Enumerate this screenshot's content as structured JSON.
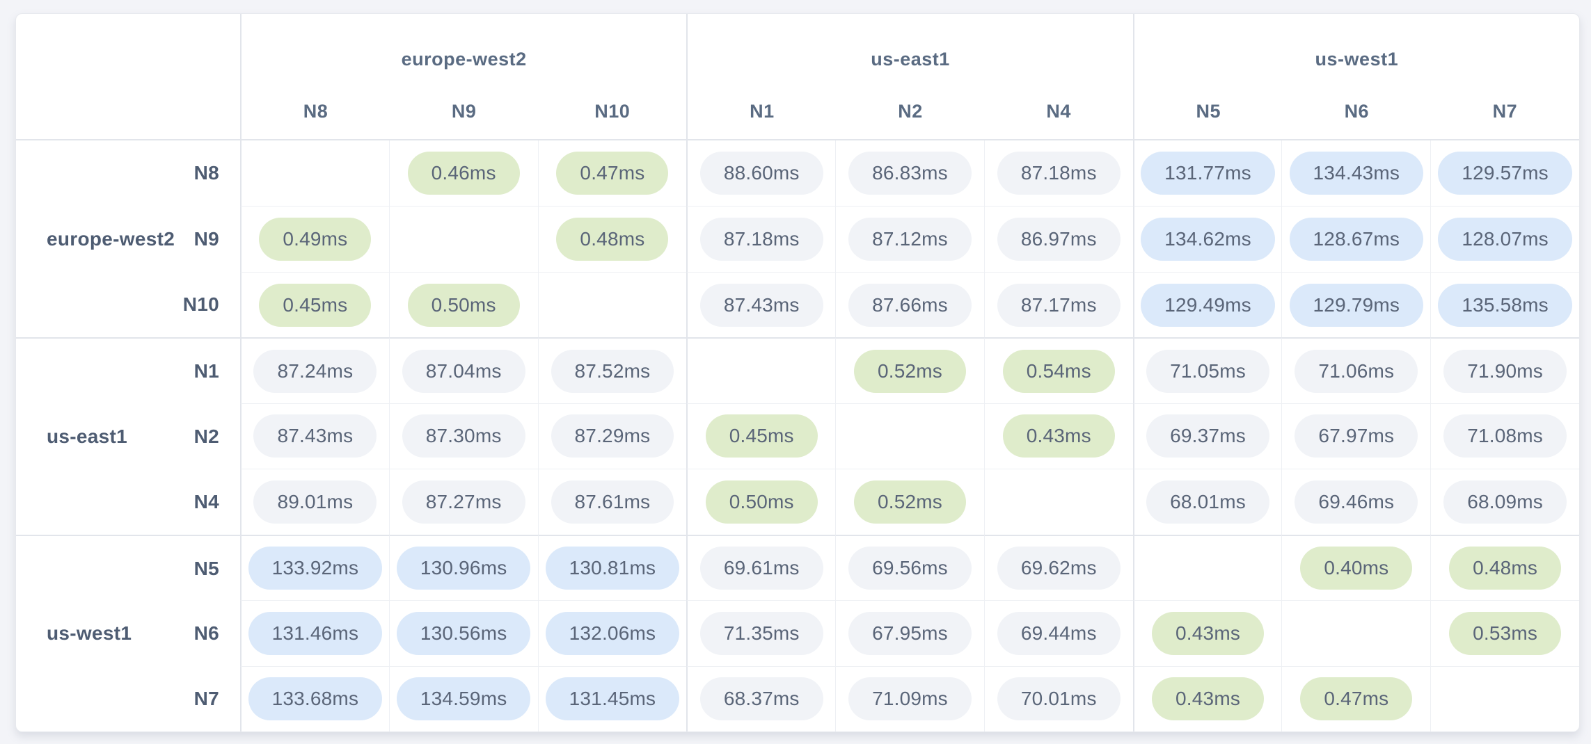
{
  "matrix": {
    "regions": [
      {
        "name": "europe-west2",
        "nodes": [
          "N8",
          "N9",
          "N10"
        ]
      },
      {
        "name": "us-east1",
        "nodes": [
          "N1",
          "N2",
          "N4"
        ]
      },
      {
        "name": "us-west1",
        "nodes": [
          "N5",
          "N6",
          "N7"
        ]
      }
    ],
    "rows": [
      {
        "region": "europe-west2",
        "node": "N8",
        "values": [
          "",
          "0.46ms",
          "0.47ms",
          "88.60ms",
          "86.83ms",
          "87.18ms",
          "131.77ms",
          "134.43ms",
          "129.57ms"
        ]
      },
      {
        "region": "europe-west2",
        "node": "N9",
        "values": [
          "0.49ms",
          "",
          "0.48ms",
          "87.18ms",
          "87.12ms",
          "86.97ms",
          "134.62ms",
          "128.67ms",
          "128.07ms"
        ]
      },
      {
        "region": "europe-west2",
        "node": "N10",
        "values": [
          "0.45ms",
          "0.50ms",
          "",
          "87.43ms",
          "87.66ms",
          "87.17ms",
          "129.49ms",
          "129.79ms",
          "135.58ms"
        ]
      },
      {
        "region": "us-east1",
        "node": "N1",
        "values": [
          "87.24ms",
          "87.04ms",
          "87.52ms",
          "",
          "0.52ms",
          "0.54ms",
          "71.05ms",
          "71.06ms",
          "71.90ms"
        ]
      },
      {
        "region": "us-east1",
        "node": "N2",
        "values": [
          "87.43ms",
          "87.30ms",
          "87.29ms",
          "0.45ms",
          "",
          "0.43ms",
          "69.37ms",
          "67.97ms",
          "71.08ms"
        ]
      },
      {
        "region": "us-east1",
        "node": "N4",
        "values": [
          "89.01ms",
          "87.27ms",
          "87.61ms",
          "0.50ms",
          "0.52ms",
          "",
          "68.01ms",
          "69.46ms",
          "68.09ms"
        ]
      },
      {
        "region": "us-west1",
        "node": "N5",
        "values": [
          "133.92ms",
          "130.96ms",
          "130.81ms",
          "69.61ms",
          "69.56ms",
          "69.62ms",
          "",
          "0.40ms",
          "0.48ms"
        ]
      },
      {
        "region": "us-west1",
        "node": "N6",
        "values": [
          "131.46ms",
          "130.56ms",
          "132.06ms",
          "71.35ms",
          "67.95ms",
          "69.44ms",
          "0.43ms",
          "",
          "0.53ms"
        ]
      },
      {
        "region": "us-west1",
        "node": "N7",
        "values": [
          "133.68ms",
          "134.59ms",
          "131.45ms",
          "68.37ms",
          "71.09ms",
          "70.01ms",
          "0.43ms",
          "0.47ms",
          ""
        ]
      }
    ]
  },
  "colors": {
    "pill_low_latency_green": "#dfeccb",
    "pill_mid_latency_gray": "#f1f3f7",
    "pill_high_latency_blue": "#dbe9fa",
    "value_text": "#5a6578",
    "column_header_text": "#5a6b82",
    "row_label_text": "#4e5c72"
  },
  "chart_data": {
    "type": "heatmap",
    "unit": "ms",
    "column_groups": [
      "europe-west2",
      "europe-west2",
      "europe-west2",
      "us-east1",
      "us-east1",
      "us-east1",
      "us-west1",
      "us-west1",
      "us-west1"
    ],
    "columns": [
      "N8",
      "N9",
      "N10",
      "N1",
      "N2",
      "N4",
      "N5",
      "N6",
      "N7"
    ],
    "row_groups": [
      "europe-west2",
      "europe-west2",
      "europe-west2",
      "us-east1",
      "us-east1",
      "us-east1",
      "us-west1",
      "us-west1",
      "us-west1"
    ],
    "rows": [
      "N8",
      "N9",
      "N10",
      "N1",
      "N2",
      "N4",
      "N5",
      "N6",
      "N7"
    ],
    "values": [
      [
        null,
        0.46,
        0.47,
        88.6,
        86.83,
        87.18,
        131.77,
        134.43,
        129.57
      ],
      [
        0.49,
        null,
        0.48,
        87.18,
        87.12,
        86.97,
        134.62,
        128.67,
        128.07
      ],
      [
        0.45,
        0.5,
        null,
        87.43,
        87.66,
        87.17,
        129.49,
        129.79,
        135.58
      ],
      [
        87.24,
        87.04,
        87.52,
        null,
        0.52,
        0.54,
        71.05,
        71.06,
        71.9
      ],
      [
        87.43,
        87.3,
        87.29,
        0.45,
        null,
        0.43,
        69.37,
        67.97,
        71.08
      ],
      [
        89.01,
        87.27,
        87.61,
        0.5,
        0.52,
        null,
        68.01,
        69.46,
        68.09
      ],
      [
        133.92,
        130.96,
        130.81,
        69.61,
        69.56,
        69.62,
        null,
        0.4,
        0.48
      ],
      [
        131.46,
        130.56,
        132.06,
        71.35,
        67.95,
        69.44,
        0.43,
        null,
        0.53
      ],
      [
        133.68,
        134.59,
        131.45,
        68.37,
        71.09,
        70.01,
        0.43,
        0.47,
        null
      ]
    ]
  }
}
